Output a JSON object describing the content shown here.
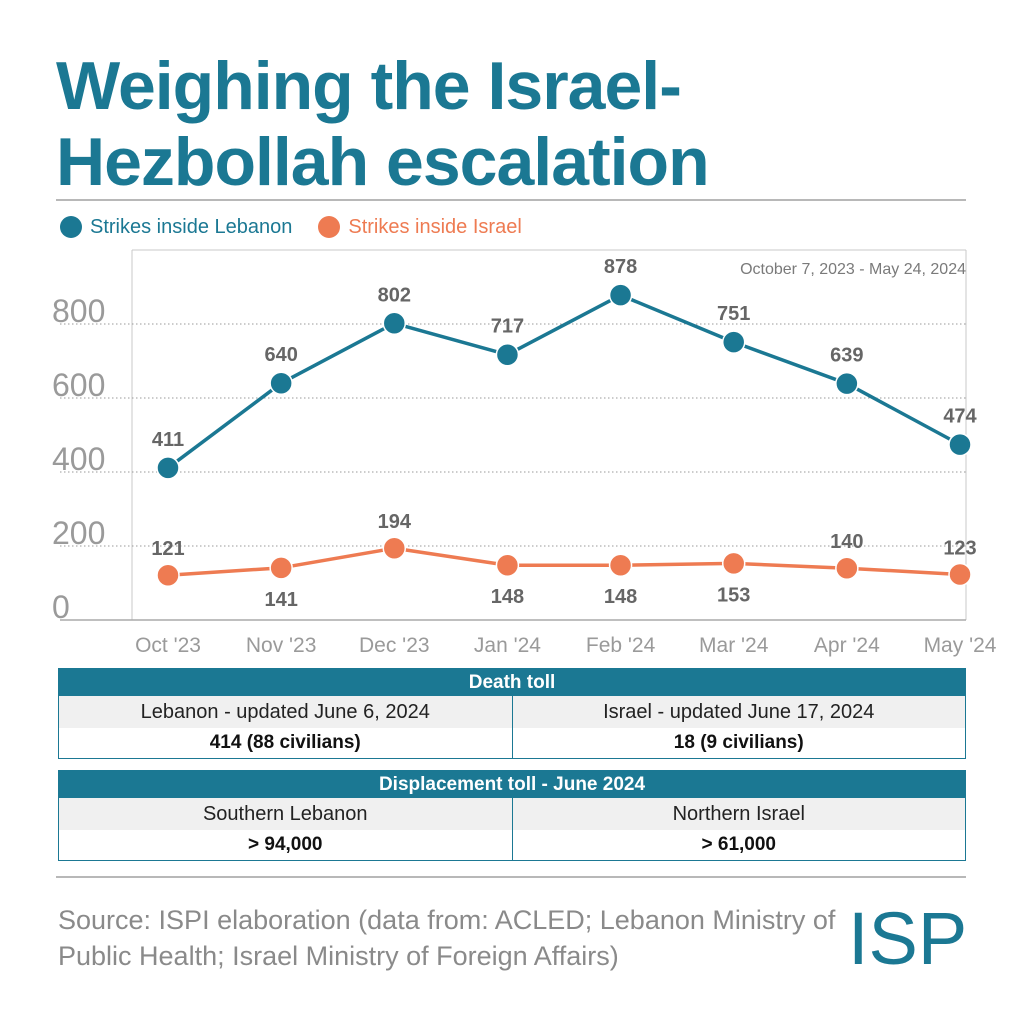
{
  "title": "Weighing the Israel-Hezbollah escalation",
  "colors": {
    "lebanon": "#1b7893",
    "israel": "#ee7b52",
    "accent": "#1b7893"
  },
  "legend": [
    {
      "label": "Strikes inside Lebanon"
    },
    {
      "label": "Strikes inside Israel"
    }
  ],
  "chart_data": {
    "type": "line",
    "annotation": "October 7, 2023 - May 24, 2024",
    "categories": [
      "Oct '23",
      "Nov '23",
      "Dec '23",
      "Jan '24",
      "Feb '24",
      "Mar '24",
      "Apr '24",
      "May '24"
    ],
    "ylim": [
      0,
      1000
    ],
    "yticks": [
      0,
      200,
      400,
      600,
      800
    ],
    "grid": true,
    "series": [
      {
        "name": "Strikes inside Lebanon",
        "values": [
          411,
          640,
          802,
          717,
          878,
          751,
          639,
          474
        ]
      },
      {
        "name": "Strikes inside Israel",
        "values": [
          121,
          141,
          194,
          148,
          148,
          153,
          140,
          123
        ]
      }
    ]
  },
  "death_toll": {
    "heading": "Death toll",
    "left_label": "Lebanon - updated June 6, 2024",
    "left_value": "414 (88 civilians)",
    "right_label": "Israel - updated June 17, 2024",
    "right_value": "18 (9 civilians)"
  },
  "displacement": {
    "heading": "Displacement toll - June 2024",
    "left_label": "Southern Lebanon",
    "left_value": "> 94,000",
    "right_label": "Northern Israel",
    "right_value": "> 61,000"
  },
  "source": "Source: ISPI elaboration (data from: ACLED; Lebanon Ministry of Public Health; Israel Ministry of Foreign Affairs)",
  "logo_text": "ISPI"
}
